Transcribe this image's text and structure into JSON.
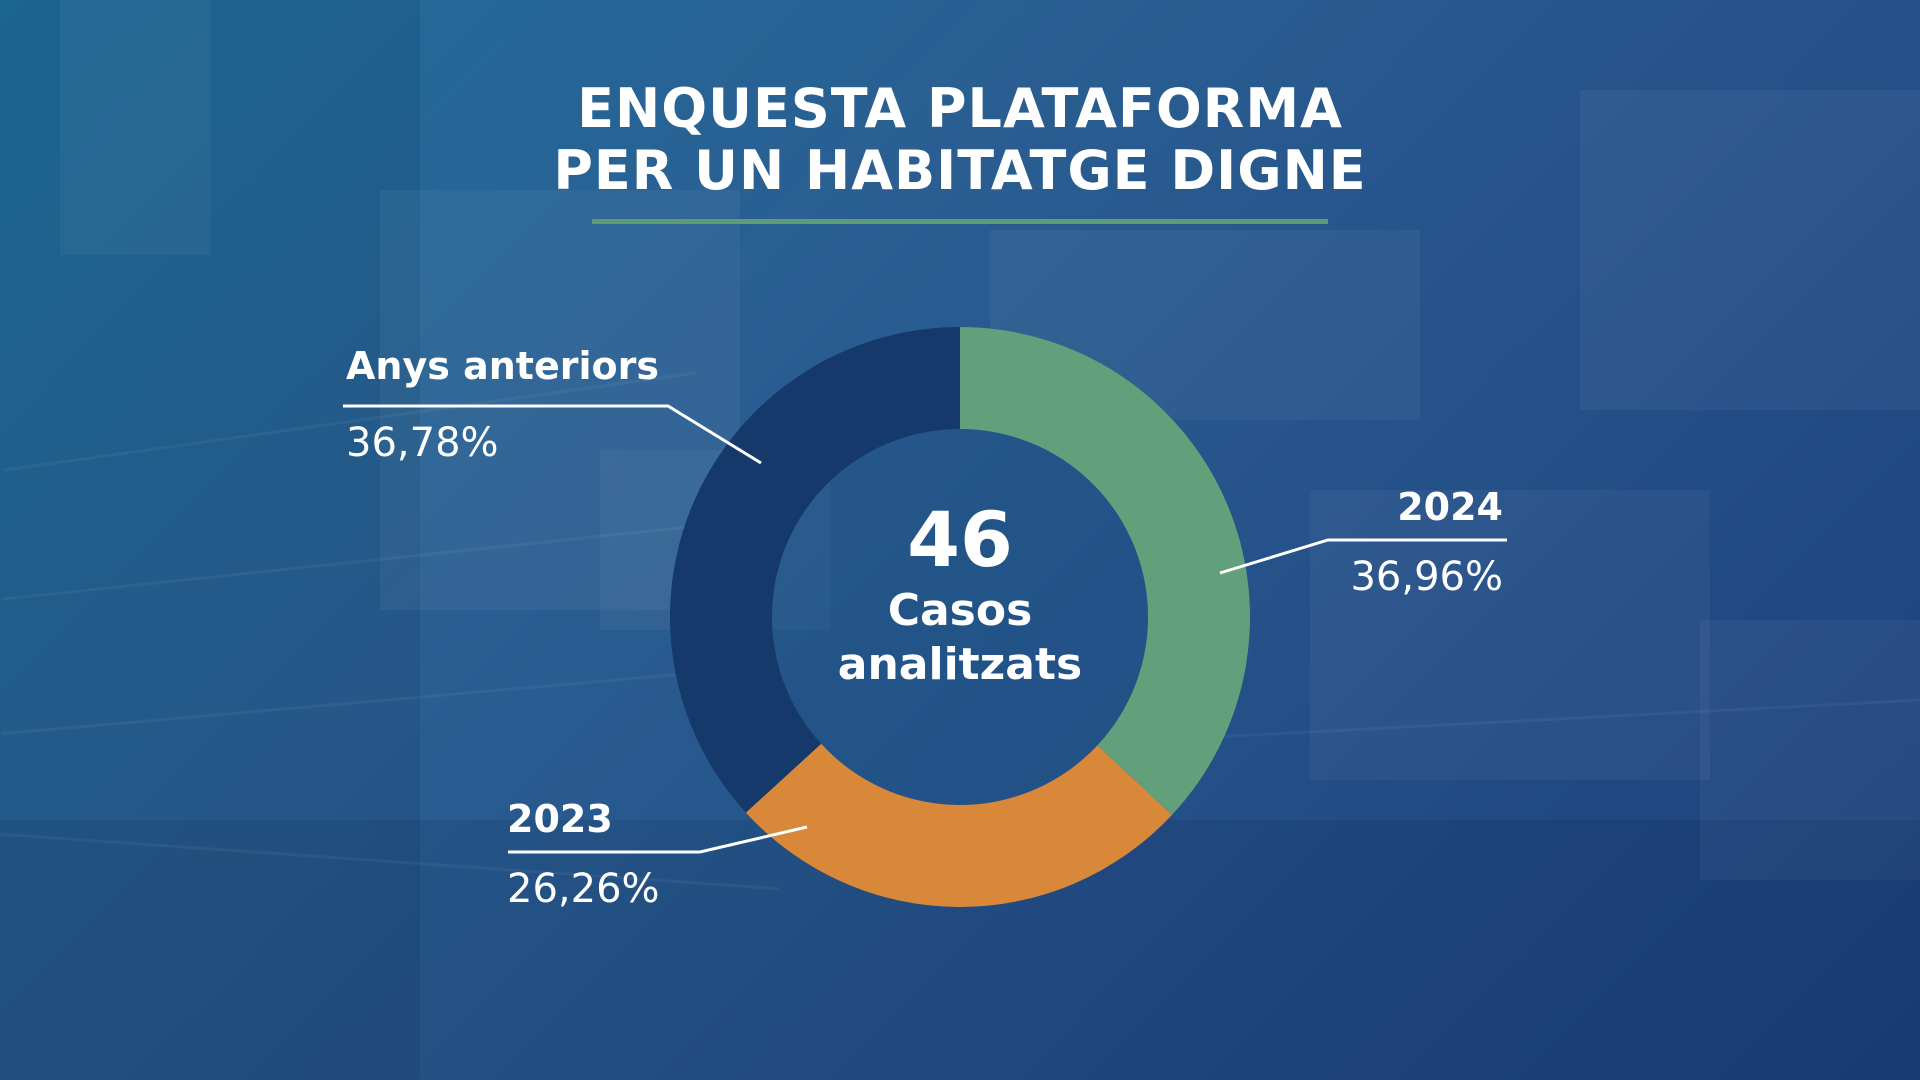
{
  "title": {
    "line1": "ENQUESTA PLATAFORMA",
    "line2": "PER UN HABITATGE DIGNE"
  },
  "center": {
    "number": "46",
    "label_line1": "Casos",
    "label_line2": "analitzats"
  },
  "colors": {
    "accent_rule": "#5e9b77",
    "slice_2024": "#62a07b",
    "slice_2023": "#d9883a",
    "slice_previous": "#15396a"
  },
  "chart_data": {
    "type": "pie",
    "title": "ENQUESTA PLATAFORMA PER UN HABITATGE DIGNE",
    "center_text": "46 Casos analitzats",
    "donut": true,
    "slices": [
      {
        "label": "2024",
        "value": 36.96,
        "value_label": "36,96%",
        "color": "#62a07b"
      },
      {
        "label": "2023",
        "value": 26.26,
        "value_label": "26,26%",
        "color": "#d9883a"
      },
      {
        "label": "Anys anteriors",
        "value": 36.78,
        "value_label": "36,78%",
        "color": "#15396a"
      }
    ]
  }
}
